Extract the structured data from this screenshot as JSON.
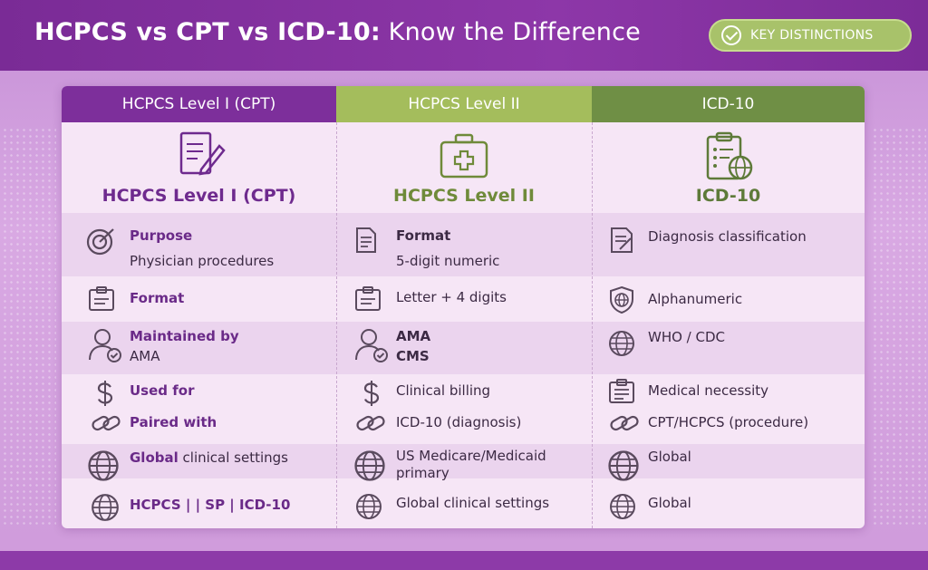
{
  "header": {
    "title_bold": "HCPCS vs CPT vs ICD-10:",
    "title_rest": "Know the Difference",
    "badge_label": "KEY DISTINCTIONS"
  },
  "columns": [
    {
      "header": "HCPCS Level I (CPT)",
      "hero_label": "HCPCS Level I (CPT)",
      "hero_icon": "document-pen-icon",
      "color": "#7d2f9b"
    },
    {
      "header": "HCPCS Level II",
      "hero_label": "HCPCS Level II",
      "hero_icon": "medical-kit-icon",
      "color": "#a4bd5c"
    },
    {
      "header": "ICD-10",
      "hero_label": "ICD-10",
      "hero_icon": "clipboard-globe-icon",
      "color": "#6f8f45"
    }
  ],
  "rows": {
    "r1": {
      "c1": {
        "key": "Purpose",
        "value": "Physician procedures",
        "icon": "target-icon"
      },
      "c2": {
        "key": "Format",
        "value": "5-digit numeric",
        "icon": "document-icon"
      },
      "c3": {
        "value": "Diagnosis classification",
        "icon": "form-icon"
      }
    },
    "r2": {
      "c1": {
        "key": "Format",
        "icon": "clipboard-icon"
      },
      "c2": {
        "value": "Letter + 4 digits",
        "icon": "clipboard-icon"
      },
      "c3": {
        "value": "Alphanumeric",
        "icon": "shield-globe-icon"
      }
    },
    "r3": {
      "c1": {
        "key": "Maintained by",
        "value": "AMA",
        "icon": "user-check-icon"
      },
      "c2": {
        "value": "AMA",
        "value2": "CMS",
        "icon": "user-check-icon"
      },
      "c3": {
        "value": "WHO / CDC",
        "icon": "globe-icon"
      }
    },
    "r4": {
      "c1": {
        "key": "Used for",
        "icon": "dollar-icon"
      },
      "c2": {
        "value": "Clinical billing",
        "icon": "dollar-icon"
      },
      "c3": {
        "value": "Medical necessity",
        "icon": "clipboard-list-icon"
      }
    },
    "r5": {
      "c1": {
        "key": "Paired with",
        "icon": "link-icon"
      },
      "c2": {
        "value": "ICD-10 (diagnosis)",
        "icon": "link-icon"
      },
      "c3": {
        "value": "CPT/HCPCS (procedure)",
        "icon": "link-icon"
      }
    },
    "r6": {
      "c1": {
        "key": "Global",
        "value": " clinical settings",
        "icon": "globe-icon"
      },
      "c2": {
        "value": "US Medicare/Medicaid",
        "value2": "primary",
        "icon": "globe-icon"
      },
      "c3": {
        "value": "Global",
        "icon": "globe-icon"
      }
    },
    "r7": {
      "c1": {
        "key": "HCPCS | | SP | ICD-10",
        "icon": "globe-icon"
      },
      "c2": {
        "value": "Global clinical settings",
        "icon": "globe-icon"
      },
      "c3": {
        "value": "Global",
        "icon": "globe-icon"
      }
    }
  }
}
